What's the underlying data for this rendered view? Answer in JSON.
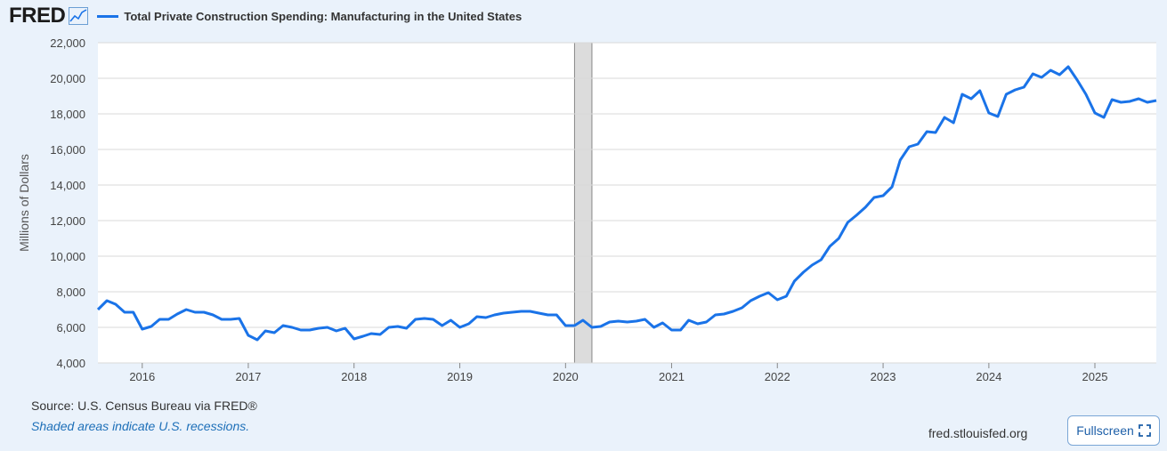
{
  "header": {
    "logo_text": "FRED",
    "logo_icon": "trend-line-icon",
    "legend_label": "Total Private Construction Spending: Manufacturing in the United States"
  },
  "footer": {
    "source": "Source: U.S. Census Bureau via FRED®",
    "shaded_note": "Shaded areas indicate U.S. recessions.",
    "site": "fred.stlouisfed.org",
    "fullscreen_label": "Fullscreen",
    "fullscreen_icon": "expand-icon"
  },
  "colors": {
    "line": "#1a73e8",
    "recession": "#dcdcdc",
    "grid": "#d9d9d9",
    "background": "#eaf2fb"
  },
  "chart_data": {
    "type": "line",
    "title": "",
    "xlabel": "",
    "ylabel": "Millions of Dollars",
    "ylim": [
      4000,
      22000
    ],
    "xlim": [
      "2015-08-01",
      "2025-08-01"
    ],
    "yticks": [
      4000,
      6000,
      8000,
      10000,
      12000,
      14000,
      16000,
      18000,
      20000,
      22000
    ],
    "ytick_labels": [
      "4,000",
      "6,000",
      "8,000",
      "10,000",
      "12,000",
      "14,000",
      "16,000",
      "18,000",
      "20,000",
      "22,000"
    ],
    "xticks": [
      "2016-01-01",
      "2017-01-01",
      "2018-01-01",
      "2019-01-01",
      "2020-01-01",
      "2021-01-01",
      "2022-01-01",
      "2023-01-01",
      "2024-01-01",
      "2025-01-01"
    ],
    "xtick_labels": [
      "2016",
      "2017",
      "2018",
      "2019",
      "2020",
      "2021",
      "2022",
      "2023",
      "2024",
      "2025"
    ],
    "grid": true,
    "recessions": [
      {
        "start": "2020-02-01",
        "end": "2020-04-01"
      }
    ],
    "series": [
      {
        "start": "2015-08",
        "frequency": "monthly",
        "values": [
          7000,
          7500,
          7300,
          6850,
          6850,
          5900,
          6050,
          6450,
          6450,
          6750,
          7000,
          6850,
          6850,
          6700,
          6450,
          6450,
          6500,
          5550,
          5300,
          5800,
          5700,
          6100,
          6000,
          5850,
          5850,
          5950,
          6000,
          5800,
          5950,
          5350,
          5500,
          5650,
          5600,
          6000,
          6050,
          5950,
          6450,
          6500,
          6450,
          6100,
          6400,
          6000,
          6200,
          6600,
          6550,
          6700,
          6800,
          6850,
          6900,
          6900,
          6800,
          6700,
          6700,
          6100,
          6100,
          6400,
          6000,
          6050,
          6300,
          6350,
          6300,
          6350,
          6450,
          6000,
          6250,
          5850,
          5850,
          6400,
          6200,
          6300,
          6700,
          6750,
          6900,
          7100,
          7500,
          7750,
          7950,
          7550,
          7750,
          8600,
          9100,
          9500,
          9800,
          10550,
          11000,
          11900,
          12300,
          12750,
          13300,
          13400,
          13900,
          15400,
          16150,
          16300,
          17000,
          16950,
          17800,
          17500,
          19100,
          18850,
          19300,
          18050,
          17850,
          19100,
          19350,
          19500,
          20250,
          20050,
          20450,
          20200,
          20650,
          19900,
          19100,
          18050,
          17800,
          18800,
          18650,
          18700,
          18850,
          18650,
          18750
        ]
      }
    ]
  }
}
